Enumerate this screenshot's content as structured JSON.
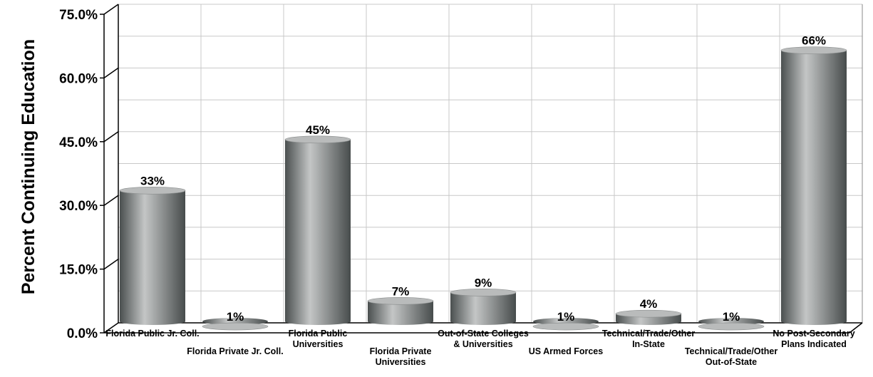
{
  "chart_data": {
    "type": "bar",
    "ylabel": "Percent Continuing Education",
    "ylim": [
      0,
      75
    ],
    "yticks": [
      "0.0%",
      "15.0%",
      "30.0%",
      "45.0%",
      "60.0%",
      "75.0%"
    ],
    "ytick_values": [
      0,
      15,
      30,
      45,
      60,
      75
    ],
    "grid": true,
    "categories": [
      [
        "Florida Public Jr. Coll."
      ],
      [
        "Florida Private Jr. Coll."
      ],
      [
        "Florida Public",
        "Universities"
      ],
      [
        "Florida Private",
        "Universities"
      ],
      [
        "Out-of-State Colleges",
        "& Universities"
      ],
      [
        "US Armed Forces"
      ],
      [
        "Technical/Trade/Other",
        "In-State"
      ],
      [
        "Technical/Trade/Other",
        "Out-of-State"
      ],
      [
        "No Post-Secondary",
        "Plans Indicated"
      ]
    ],
    "values": [
      33,
      1,
      45,
      7,
      9,
      1,
      4,
      1,
      66
    ],
    "data_labels": [
      "33%",
      "1%",
      "45%",
      "7%",
      "9%",
      "1%",
      "4%",
      "1%",
      "66%"
    ],
    "colors": {
      "bar_dark": "#4a4f4f",
      "bar_light": "#c4c6c6",
      "bar_top": "#b9bbbb",
      "grid": "#c8c8c8",
      "axis": "#000000"
    }
  }
}
